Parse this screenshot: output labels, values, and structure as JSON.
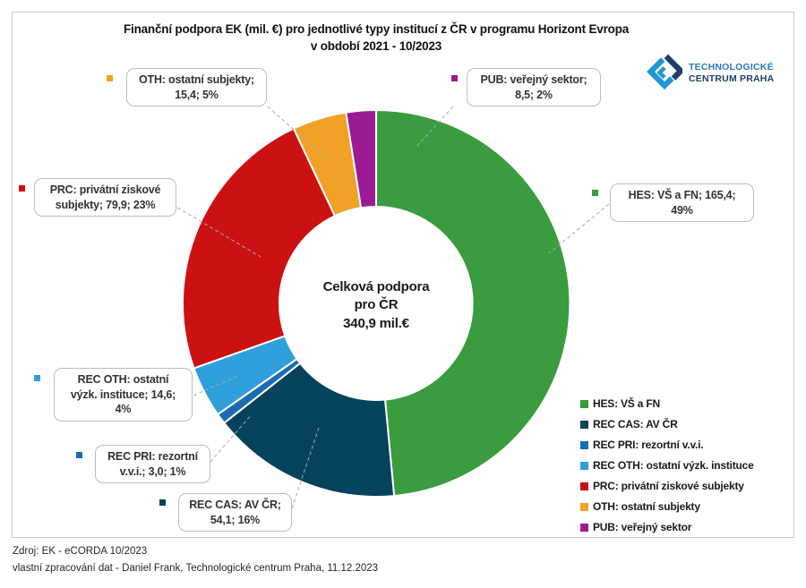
{
  "title": {
    "lines": [
      "Finanční podpora EK (mil. €) pro jednotlivé typy institucí z ČR v programu Horizont Evropa",
      "v období 2021 - 10/2023"
    ]
  },
  "logo": {
    "line1": "TECHNOLOGICKÉ",
    "line2": "CENTRUM PRAHA"
  },
  "chart_data": {
    "type": "pie",
    "subtype": "donut",
    "title": "Finanční podpora EK (mil. €) pro jednotlivé typy institucí z ČR v programu Horizont Evropa v období 2021 - 10/2023",
    "units": "mil. €",
    "total": 340.9,
    "center_label_lines": [
      "Celková podpora",
      "pro ČR",
      "340,9 mil.€"
    ],
    "start_angle_deg": 0,
    "direction": "clockwise",
    "legend_position": "right-bottom",
    "series": [
      {
        "code": "HES",
        "label": "HES: VŠ a FN",
        "value": 165.4,
        "pct": "49%",
        "color": "#3a9b3f"
      },
      {
        "code": "REC CAS",
        "label": "REC CAS: AV ČR",
        "value": 54.1,
        "pct": "16%",
        "color": "#05425c"
      },
      {
        "code": "REC PRI",
        "label": "REC PRI: rezortní v.v.i.",
        "value": 3.0,
        "pct": "1%",
        "color": "#1b6cb5"
      },
      {
        "code": "REC OTH",
        "label": "REC OTH: ostatní výzk. instituce",
        "value": 14.6,
        "pct": "4%",
        "color": "#2fa0db"
      },
      {
        "code": "PRC",
        "label": "PRC: privátní ziskové subjekty",
        "value": 79.9,
        "pct": "23%",
        "color": "#cc1113"
      },
      {
        "code": "OTH",
        "label": "OTH: ostatní subjekty",
        "value": 15.4,
        "pct": "5%",
        "color": "#f1a226"
      },
      {
        "code": "PUB",
        "label": "PUB: veřejný sektor",
        "value": 8.5,
        "pct": "2%",
        "color": "#9c1b95"
      }
    ]
  },
  "callouts": {
    "oth": {
      "code": "OTH",
      "lines": [
        "OTH: ostatní subjekty;",
        "15,4; 5%"
      ]
    },
    "pub": {
      "code": "PUB",
      "lines": [
        "PUB: veřejný sektor;",
        "8,5; 2%"
      ]
    },
    "prc": {
      "code": "PRC",
      "lines": [
        "PRC: privátní ziskové",
        "subjekty;  79,9; 23%"
      ]
    },
    "hes": {
      "code": "HES",
      "lines": [
        "HES: VŠ a FN;  165,4;",
        "49%"
      ]
    },
    "rec_oth": {
      "code": "REC OTH",
      "lines": [
        "REC OTH: ostatní",
        "výzk. instituce;  14,6;",
        "4%"
      ]
    },
    "rec_pri": {
      "code": "REC PRI",
      "lines": [
        "REC PRI: rezortní",
        "v.v.i.;  3,0; 1%"
      ]
    },
    "rec_cas": {
      "code": "REC CAS",
      "lines": [
        "REC CAS: AV ČR;",
        "54,1; 16%"
      ]
    }
  },
  "footer": {
    "line1": "Zdroj: EK - eCORDA 10/2023",
    "line2": "vlastní zpracování dat - Daniel Frank, Technologické centrum Praha, 11.12.2023"
  },
  "colors": {
    "frame_border": "#c9c9c9",
    "callout_border": "#bdbdbd",
    "leader_line": "#a9a9a9",
    "logo_light_blue": "#2196d5",
    "logo_dark_navy": "#1d3e66"
  }
}
